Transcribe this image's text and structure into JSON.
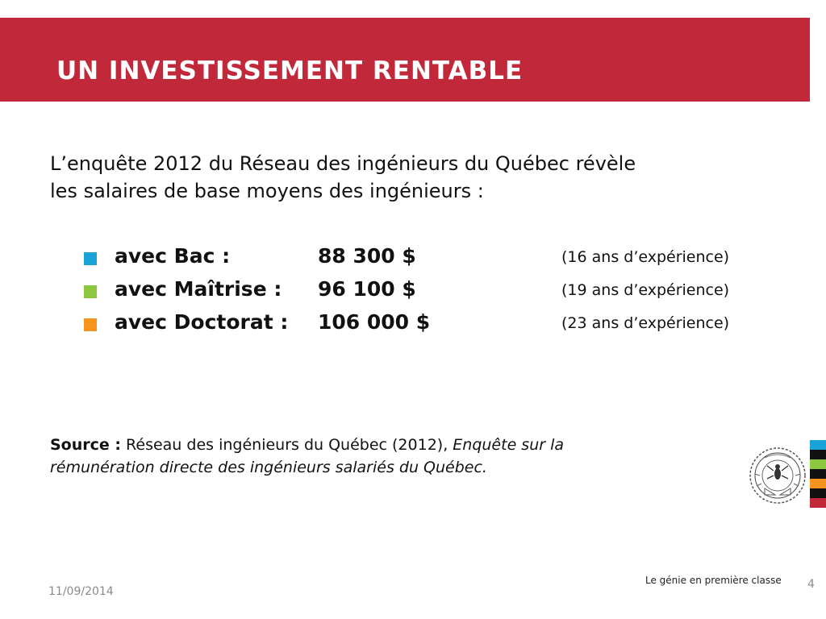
{
  "slide": {
    "title": "UN INVESTISSEMENT RENTABLE",
    "intro_lines": [
      "L’enquête 2012 du Réseau des ingénieurs du Québec révèle",
      "les salaires de base moyens des ingénieurs :"
    ],
    "bullets": [
      {
        "label": "avec Bac :",
        "amount": "88 300 $",
        "experience": "(16 ans d’expérience)",
        "color": "#1aa3d9"
      },
      {
        "label": "avec Maîtrise :",
        "amount": "96 100 $",
        "experience": "(19 ans d’expérience)",
        "color": "#8dc63f"
      },
      {
        "label": "avec Doctorat :",
        "amount": "106 000 $",
        "experience": "(23 ans d’expérience)",
        "color": "#f7941d"
      }
    ],
    "source": {
      "label": "Source :",
      "text_plain": " Réseau des ingénieurs du Québec (2012), ",
      "text_italic_1": "Enquête sur la",
      "text_italic_2": "rémunération directe des ingénieurs salariés du Québec."
    }
  },
  "footer": {
    "date": "11/09/2014",
    "tagline": "Le génie en première classe",
    "page_number": "4"
  },
  "branding": {
    "seal_icon": "polytechnique-seal-icon",
    "title_band_color": "#c1283a",
    "stripes": [
      "#1aa3d9",
      "#111111",
      "#8dc63f",
      "#111111",
      "#f7941d",
      "#111111",
      "#c1283a"
    ]
  }
}
